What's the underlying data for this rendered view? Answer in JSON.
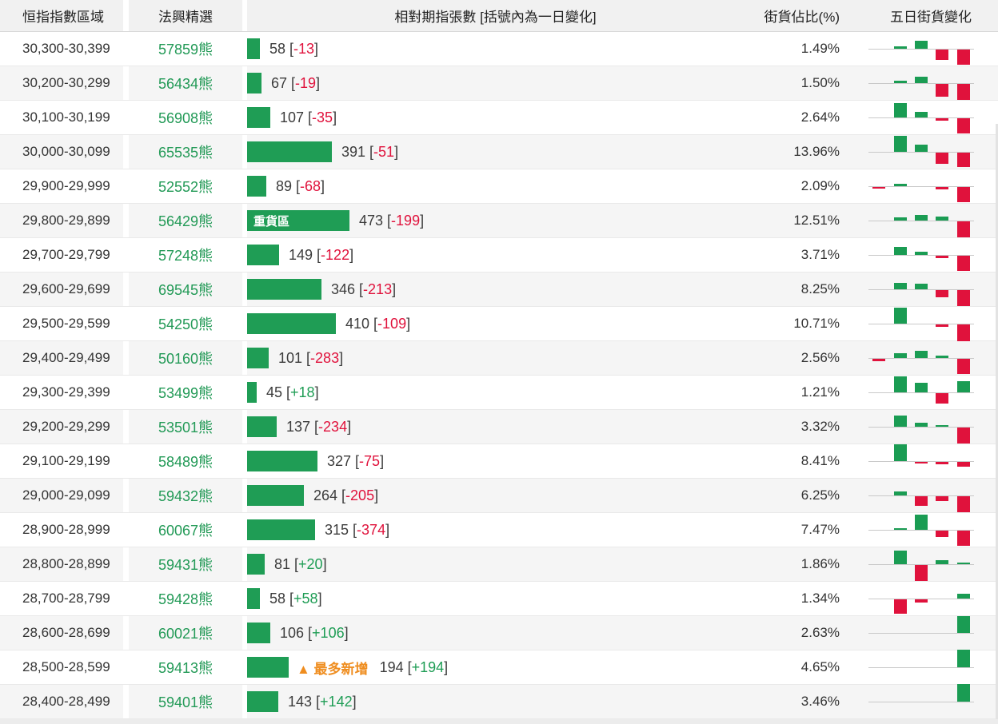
{
  "header": {
    "col_range": "恒指指數區域",
    "col_code": "法興精選",
    "col_contracts": "相對期指張數 [括號內為一日變化]",
    "col_outstanding": "街貨佔比(%)",
    "col_five_day": "五日街貨變化"
  },
  "colors": {
    "bar_green": "#1f9d55",
    "candle_green": "#1a9c53",
    "negative_red": "#e0123c",
    "annotation_orange": "#ef8d1f",
    "code_green": "#239a57",
    "row_alt_bg": "#f5f5f5",
    "header_bg": "#f1f1f1"
  },
  "rows": [
    {
      "range": "30,300-30,399",
      "code": "57859熊",
      "contracts": "58",
      "change": "-13",
      "pct": "1.49%",
      "bar_label": "",
      "annotation": "",
      "candle": [
        0,
        3,
        10,
        -13,
        -19
      ]
    },
    {
      "range": "30,200-30,299",
      "code": "56434熊",
      "contracts": "67",
      "change": "-19",
      "pct": "1.50%",
      "bar_label": "",
      "annotation": "",
      "candle": [
        0,
        3,
        8,
        -16,
        -20
      ]
    },
    {
      "range": "30,100-30,199",
      "code": "56908熊",
      "contracts": "107",
      "change": "-35",
      "pct": "2.64%",
      "bar_label": "",
      "annotation": "",
      "candle": [
        0,
        18,
        7,
        -3,
        -19
      ]
    },
    {
      "range": "30,000-30,099",
      "code": "65535熊",
      "contracts": "391",
      "change": "-51",
      "pct": "13.96%",
      "bar_label": "",
      "annotation": "",
      "candle": [
        0,
        20,
        9,
        -14,
        -18
      ]
    },
    {
      "range": "29,900-29,999",
      "code": "52552熊",
      "contracts": "89",
      "change": "-68",
      "pct": "2.09%",
      "bar_label": "",
      "annotation": "",
      "candle": [
        -2,
        3,
        0,
        -3,
        -19
      ]
    },
    {
      "range": "29,800-29,899",
      "code": "56429熊",
      "contracts": "473",
      "change": "-199",
      "pct": "12.51%",
      "bar_label": "重貨區",
      "annotation": "",
      "candle": [
        0,
        4,
        7,
        5,
        -20
      ]
    },
    {
      "range": "29,700-29,799",
      "code": "57248熊",
      "contracts": "149",
      "change": "-122",
      "pct": "3.71%",
      "bar_label": "",
      "annotation": "",
      "candle": [
        0,
        10,
        4,
        -3,
        -19
      ]
    },
    {
      "range": "29,600-29,699",
      "code": "69545熊",
      "contracts": "346",
      "change": "-213",
      "pct": "8.25%",
      "bar_label": "",
      "annotation": "",
      "candle": [
        0,
        8,
        7,
        -9,
        -20
      ]
    },
    {
      "range": "29,500-29,599",
      "code": "54250熊",
      "contracts": "410",
      "change": "-109",
      "pct": "10.71%",
      "bar_label": "",
      "annotation": "",
      "candle": [
        0,
        20,
        0,
        -3,
        -21
      ]
    },
    {
      "range": "29,400-29,499",
      "code": "50160熊",
      "contracts": "101",
      "change": "-283",
      "pct": "2.56%",
      "bar_label": "",
      "annotation": "",
      "candle": [
        -3,
        6,
        9,
        3,
        -19
      ]
    },
    {
      "range": "29,300-29,399",
      "code": "53499熊",
      "contracts": "45",
      "change": "+18",
      "pct": "1.21%",
      "bar_label": "",
      "annotation": "",
      "candle": [
        0,
        20,
        12,
        -13,
        14
      ]
    },
    {
      "range": "29,200-29,299",
      "code": "53501熊",
      "contracts": "137",
      "change": "-234",
      "pct": "3.32%",
      "bar_label": "",
      "annotation": "",
      "candle": [
        0,
        14,
        5,
        2,
        -20
      ]
    },
    {
      "range": "29,100-29,199",
      "code": "58489熊",
      "contracts": "327",
      "change": "-75",
      "pct": "8.41%",
      "bar_label": "",
      "annotation": "",
      "candle": [
        0,
        21,
        -2,
        -3,
        -6
      ]
    },
    {
      "range": "29,000-29,099",
      "code": "59432熊",
      "contracts": "264",
      "change": "-205",
      "pct": "6.25%",
      "bar_label": "",
      "annotation": "",
      "candle": [
        0,
        5,
        -12,
        -6,
        -20
      ]
    },
    {
      "range": "28,900-28,999",
      "code": "60067熊",
      "contracts": "315",
      "change": "-374",
      "pct": "7.47%",
      "bar_label": "",
      "annotation": "",
      "candle": [
        0,
        2,
        19,
        -8,
        -19
      ]
    },
    {
      "range": "28,800-28,899",
      "code": "59431熊",
      "contracts": "81",
      "change": "+20",
      "pct": "1.86%",
      "bar_label": "",
      "annotation": "",
      "candle": [
        0,
        17,
        -20,
        5,
        2
      ]
    },
    {
      "range": "28,700-28,799",
      "code": "59428熊",
      "contracts": "58",
      "change": "+58",
      "pct": "1.34%",
      "bar_label": "",
      "annotation": "",
      "candle": [
        0,
        -18,
        -4,
        0,
        6
      ]
    },
    {
      "range": "28,600-28,699",
      "code": "60021熊",
      "contracts": "106",
      "change": "+106",
      "pct": "2.63%",
      "bar_label": "",
      "annotation": "",
      "candle": [
        0,
        0,
        0,
        0,
        21
      ]
    },
    {
      "range": "28,500-28,599",
      "code": "59413熊",
      "contracts": "194",
      "change": "+194",
      "pct": "4.65%",
      "bar_label": "",
      "annotation": "▲ 最多新增",
      "candle": [
        0,
        0,
        0,
        0,
        22
      ]
    },
    {
      "range": "28,400-28,499",
      "code": "59401熊",
      "contracts": "143",
      "change": "+142",
      "pct": "3.46%",
      "bar_label": "",
      "annotation": "",
      "candle": [
        0,
        0,
        0,
        0,
        22
      ]
    }
  ]
}
